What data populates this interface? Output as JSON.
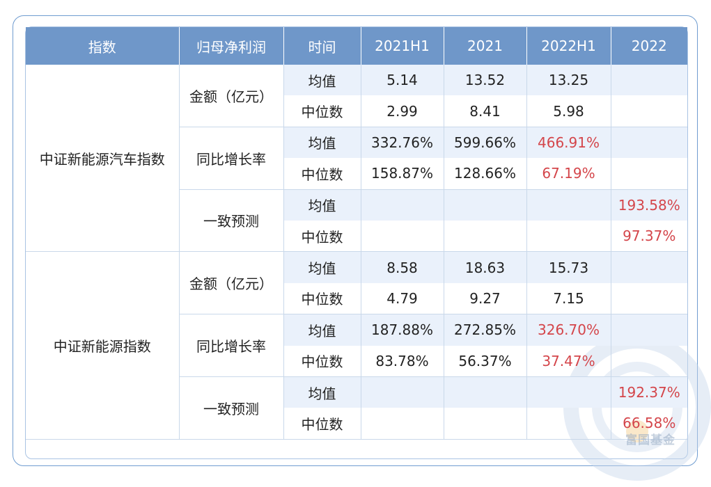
{
  "headers": [
    "指数",
    "归母净利润",
    "时间",
    "2021H1",
    "2021",
    "2022H1",
    "2022"
  ],
  "groups": [
    {
      "index": "中证新能源汽车指数",
      "sections": [
        {
          "metric": "金额（亿元）",
          "rows": [
            {
              "stat": "均值",
              "vals": [
                "5.14",
                "13.52",
                "13.25",
                ""
              ]
            },
            {
              "stat": "中位数",
              "vals": [
                "2.99",
                "8.41",
                "5.98",
                ""
              ]
            }
          ]
        },
        {
          "metric": "同比增长率",
          "rows": [
            {
              "stat": "均值",
              "vals": [
                "332.76%",
                "599.66%",
                "466.91%",
                ""
              ]
            },
            {
              "stat": "中位数",
              "vals": [
                "158.87%",
                "128.66%",
                "67.19%",
                ""
              ]
            }
          ]
        },
        {
          "metric": "一致预测",
          "rows": [
            {
              "stat": "均值",
              "vals": [
                "",
                "",
                "",
                "193.58%"
              ]
            },
            {
              "stat": "中位数",
              "vals": [
                "",
                "",
                "",
                "97.37%"
              ]
            }
          ]
        }
      ]
    },
    {
      "index": "中证新能源指数",
      "sections": [
        {
          "metric": "金额（亿元）",
          "rows": [
            {
              "stat": "均值",
              "vals": [
                "8.58",
                "18.63",
                "15.73",
                ""
              ]
            },
            {
              "stat": "中位数",
              "vals": [
                "4.79",
                "9.27",
                "7.15",
                ""
              ]
            }
          ]
        },
        {
          "metric": "同比增长率",
          "rows": [
            {
              "stat": "均值",
              "vals": [
                "187.88%",
                "272.85%",
                "326.70%",
                ""
              ]
            },
            {
              "stat": "中位数",
              "vals": [
                "83.78%",
                "56.37%",
                "37.47%",
                ""
              ]
            }
          ]
        },
        {
          "metric": "一致预测",
          "rows": [
            {
              "stat": "均值",
              "vals": [
                "",
                "",
                "",
                "192.37%"
              ]
            },
            {
              "stat": "中位数",
              "vals": [
                "",
                "",
                "",
                "66.58%"
              ]
            }
          ]
        }
      ]
    }
  ],
  "watermark": "富国基金",
  "colors": {
    "header_bg": "#6f97c9",
    "row_shade": "#eaf1fb",
    "highlight": "#d4454a",
    "border": "#6f9cd0"
  }
}
